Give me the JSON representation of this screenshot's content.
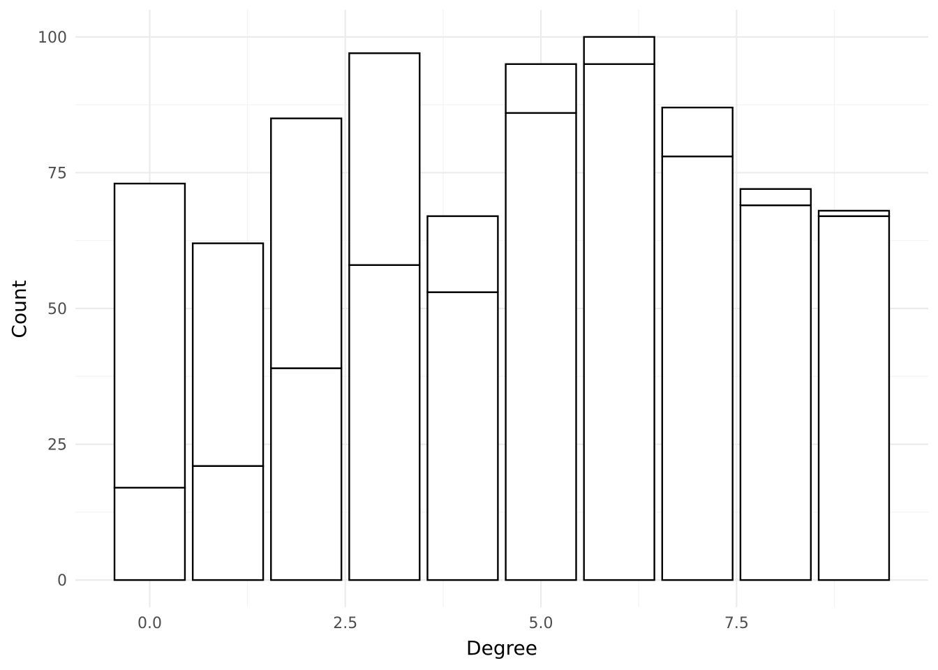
{
  "chart_data": {
    "type": "bar",
    "stacked": true,
    "x": [
      0,
      1,
      2,
      3,
      4,
      5,
      6,
      7,
      8,
      9
    ],
    "series": [
      {
        "values": [
          17,
          21,
          39,
          58,
          53,
          86,
          95,
          78,
          69,
          67
        ]
      },
      {
        "values": [
          56,
          41,
          46,
          39,
          14,
          9,
          5,
          9,
          3,
          1
        ]
      }
    ],
    "totals": [
      73,
      62,
      85,
      97,
      67,
      95,
      100,
      87,
      72,
      68
    ],
    "xlabel": "Degree",
    "ylabel": "Count",
    "xlim": [
      -0.95,
      9.95
    ],
    "ylim": [
      -5,
      105
    ],
    "x_ticks": [
      0,
      2.5,
      5,
      7.5
    ],
    "x_tick_labels": [
      "0.0",
      "2.5",
      "5.0",
      "7.5"
    ],
    "y_ticks": [
      0,
      25,
      50,
      75,
      100
    ],
    "y_tick_labels": [
      "0",
      "25",
      "50",
      "75",
      "100"
    ],
    "bar_fill": "#ffffff",
    "bar_outline": "#000000",
    "grid": true,
    "legend": "none"
  }
}
